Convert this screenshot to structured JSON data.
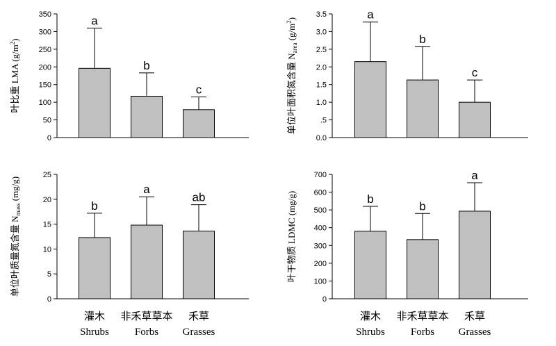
{
  "categories": {
    "cn": [
      "灌木",
      "非禾草草本",
      "禾草"
    ],
    "en": [
      "Shrubs",
      "Forbs",
      "Grasses"
    ]
  },
  "chart_data": [
    {
      "type": "bar",
      "ylabel": {
        "main": "叶比重 LMA (g/m",
        "sup": "2",
        "tail": ")"
      },
      "ylim": [
        0,
        350
      ],
      "yticks": [
        "0",
        "50",
        "100",
        "150",
        "200",
        "250",
        "300",
        "350"
      ],
      "ytick_values": [
        0,
        50,
        100,
        150,
        200,
        250,
        300,
        350
      ],
      "values": [
        196,
        117,
        79
      ],
      "errors": [
        114,
        66,
        36
      ],
      "letters": [
        "a",
        "b",
        "c"
      ]
    },
    {
      "type": "bar",
      "ylabel": {
        "main": "单位叶面积氮含量 N",
        "sub": "area",
        "tail": " (g/m",
        "sup": "2",
        "tail2": ")"
      },
      "ylim": [
        0,
        3.5
      ],
      "yticks": [
        "0.0",
        ".5",
        "1.0",
        "1.5",
        "2.0",
        "2.5",
        "3.0",
        "3.5"
      ],
      "ytick_values": [
        0,
        0.5,
        1.0,
        1.5,
        2.0,
        2.5,
        3.0,
        3.5
      ],
      "values": [
        2.15,
        1.63,
        1.0
      ],
      "errors": [
        1.12,
        0.95,
        0.63
      ],
      "letters": [
        "a",
        "b",
        "c"
      ]
    },
    {
      "type": "bar",
      "ylabel": {
        "main": "单位叶质量氮含量 N",
        "sub": "mass",
        "tail": " (mg/g)"
      },
      "ylim": [
        0,
        25
      ],
      "yticks": [
        "0",
        "5",
        "10",
        "15",
        "20",
        "25"
      ],
      "ytick_values": [
        0,
        5,
        10,
        15,
        20,
        25
      ],
      "values": [
        12.3,
        14.8,
        13.6
      ],
      "errors": [
        4.9,
        5.7,
        5.3
      ],
      "letters": [
        "b",
        "a",
        "ab"
      ]
    },
    {
      "type": "bar",
      "ylabel": {
        "main": "叶干物质 LDMC (mg/g)"
      },
      "ylim": [
        0,
        700
      ],
      "yticks": [
        "0",
        "100",
        "200",
        "300",
        "400",
        "500",
        "600",
        "700"
      ],
      "ytick_values": [
        0,
        100,
        200,
        300,
        400,
        500,
        600,
        700
      ],
      "values": [
        380,
        333,
        493
      ],
      "errors": [
        140,
        147,
        160
      ],
      "letters": [
        "b",
        "b",
        "a"
      ]
    }
  ]
}
